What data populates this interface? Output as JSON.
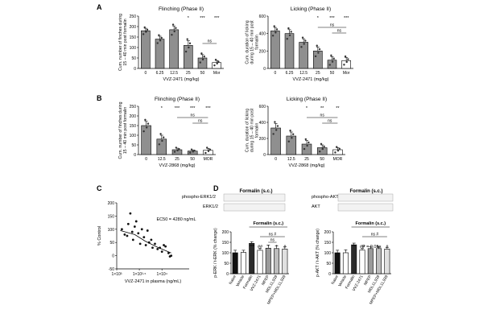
{
  "panel_labels": [
    "A",
    "B",
    "C",
    "D"
  ],
  "chart_data": [
    {
      "type": "bar",
      "panel": "A",
      "title": "Flinching (Phase II)",
      "ylabel": "Cum. number of finches during 15 – 40 min post formalin",
      "xlabel": "VVZ-2471 (mg/kg)",
      "categories": [
        "0",
        "6.25",
        "12.5",
        "25",
        "50",
        "Mor"
      ],
      "values": [
        180,
        140,
        185,
        110,
        50,
        28
      ],
      "errors": [
        12,
        14,
        18,
        22,
        16,
        10
      ],
      "ylim": [
        0,
        250
      ],
      "yticks": [
        0,
        50,
        100,
        150,
        200,
        250
      ],
      "sig": [
        "",
        "",
        "",
        "*",
        "***",
        "***"
      ],
      "brackets": [
        {
          "from": 4,
          "to": 5,
          "label": "ns"
        }
      ]
    },
    {
      "type": "bar",
      "panel": "A",
      "title": "Licking (Phase II)",
      "ylabel": "Cum. duration of licking during 15 – 40 min post formalin",
      "xlabel": "VVZ-2471 (mg/kg)",
      "categories": [
        "0",
        "6.25",
        "12.5",
        "25",
        "50",
        "Mor"
      ],
      "values": [
        430,
        400,
        300,
        200,
        95,
        90
      ],
      "errors": [
        40,
        45,
        40,
        45,
        40,
        35
      ],
      "ylim": [
        0,
        600
      ],
      "yticks": [
        0,
        200,
        400,
        600
      ],
      "sig": [
        "",
        "",
        "",
        "*",
        "***",
        "***"
      ],
      "brackets": [
        {
          "from": 3,
          "to": 5,
          "label": "ns"
        },
        {
          "from": 4,
          "to": 5,
          "label": "ns"
        }
      ]
    },
    {
      "type": "bar",
      "panel": "B",
      "title": "Flinching (Phase II)",
      "ylabel": "Cum. number of finches during 15 – 40 min post formalin",
      "xlabel": "VVZ-2868 (mg/kg)",
      "categories": [
        "0",
        "12.5",
        "25",
        "50",
        "MOR"
      ],
      "values": [
        150,
        80,
        25,
        18,
        22
      ],
      "errors": [
        22,
        20,
        8,
        6,
        10
      ],
      "ylim": [
        0,
        250
      ],
      "yticks": [
        0,
        50,
        100,
        150,
        200,
        250
      ],
      "sig": [
        "",
        "*",
        "***",
        "***",
        "***"
      ],
      "brackets": [
        {
          "from": 2,
          "to": 4,
          "label": "ns"
        },
        {
          "from": 3,
          "to": 4,
          "label": "ns"
        }
      ]
    },
    {
      "type": "bar",
      "panel": "B",
      "title": "Licking (Phase II)",
      "ylabel": "Cum. duration of licking during 15 – 40 min post formalin",
      "xlabel": "VVZ-2868 (mg/kg)",
      "categories": [
        "0",
        "12.5",
        "25",
        "50",
        "MOR"
      ],
      "values": [
        330,
        230,
        130,
        85,
        60
      ],
      "errors": [
        55,
        50,
        45,
        35,
        25
      ],
      "ylim": [
        0,
        600
      ],
      "yticks": [
        0,
        200,
        400,
        600
      ],
      "sig": [
        "",
        "",
        "*",
        "**",
        "**"
      ],
      "brackets": [
        {
          "from": 2,
          "to": 4,
          "label": "ns"
        },
        {
          "from": 3,
          "to": 4,
          "label": "ns"
        }
      ]
    },
    {
      "type": "scatter",
      "panel": "C",
      "ylabel": "% Control",
      "xlabel": "VVZ-2471 in plasma (ng/mL)",
      "annotation": "EC50 = 4280 ng/mL",
      "xscale": "log",
      "xlim": [
        1000,
        40000
      ],
      "ylim": [
        -50,
        200
      ],
      "yticks": [
        -50,
        0,
        50,
        100,
        150,
        200
      ],
      "xticks": [
        {
          "value": 1000,
          "label": "1×10³"
        },
        {
          "value": 3162,
          "label": "1×10³·⁵"
        },
        {
          "value": 10000,
          "label": "1×10⁴"
        }
      ],
      "points": [
        {
          "x": 1300,
          "y": 100
        },
        {
          "x": 1500,
          "y": 80
        },
        {
          "x": 1700,
          "y": 75
        },
        {
          "x": 1800,
          "y": 120
        },
        {
          "x": 2000,
          "y": 160
        },
        {
          "x": 2200,
          "y": 90
        },
        {
          "x": 2300,
          "y": 60
        },
        {
          "x": 2500,
          "y": 110
        },
        {
          "x": 2700,
          "y": 130
        },
        {
          "x": 3000,
          "y": 85
        },
        {
          "x": 3300,
          "y": 45
        },
        {
          "x": 3600,
          "y": 100
        },
        {
          "x": 4000,
          "y": 70
        },
        {
          "x": 4400,
          "y": 40
        },
        {
          "x": 4800,
          "y": 95
        },
        {
          "x": 5200,
          "y": 50
        },
        {
          "x": 5800,
          "y": 60
        },
        {
          "x": 6200,
          "y": 30
        },
        {
          "x": 7000,
          "y": 45
        },
        {
          "x": 8000,
          "y": 25
        },
        {
          "x": 9000,
          "y": 30
        },
        {
          "x": 10000,
          "y": 15
        },
        {
          "x": 11000,
          "y": 40
        },
        {
          "x": 12000,
          "y": 35
        },
        {
          "x": 14000,
          "y": 10
        },
        {
          "x": 16000,
          "y": 0
        },
        {
          "x": 15000,
          "y": -3
        }
      ],
      "fit": [
        {
          "x": 1200,
          "y": 95
        },
        {
          "x": 2500,
          "y": 80
        },
        {
          "x": 4280,
          "y": 55
        },
        {
          "x": 8000,
          "y": 32
        },
        {
          "x": 16000,
          "y": 10
        }
      ]
    },
    {
      "type": "bar",
      "panel": "D",
      "ylabel": "p-ERK / t-ERK (% change)",
      "group_label": "Formalin (s.c.)",
      "categories": [
        "Naive",
        "Vehicle",
        "Formalin",
        "VVZ-2471",
        "MPEP",
        "MDL11,939",
        "MPEP+MDL11,939"
      ],
      "values": [
        100,
        102,
        145,
        112,
        122,
        120,
        118
      ],
      "errors": [
        12,
        10,
        8,
        10,
        14,
        12,
        10
      ],
      "colors": [
        "#111111",
        "#ffffff",
        "#2b2b2b",
        "#ffffff",
        "#9a9a9a",
        "#bdbdbd",
        "#e0e0e0"
      ],
      "ylim": [
        0,
        200
      ],
      "yticks": [
        0,
        50,
        100,
        150,
        200
      ],
      "sig": [
        "",
        "",
        "***",
        "##",
        "*",
        "*",
        "#"
      ],
      "brackets": [
        {
          "from": 3,
          "to": 6,
          "label": "ns #"
        },
        {
          "from": 4,
          "to": 5,
          "label": "ns"
        }
      ]
    },
    {
      "type": "bar",
      "panel": "D",
      "ylabel": "p-AKT / t-AKT (% change)",
      "group_label": "Formalin (s.c.)",
      "categories": [
        "Naive",
        "Vehicle",
        "Formalin",
        "VVZ-2471",
        "MPEP",
        "MDL11,939",
        "MPEP+MDL11,939"
      ],
      "values": [
        100,
        100,
        138,
        113,
        120,
        120,
        118
      ],
      "errors": [
        12,
        14,
        8,
        8,
        10,
        10,
        8
      ],
      "colors": [
        "#111111",
        "#ffffff",
        "#2b2b2b",
        "#ffffff",
        "#9a9a9a",
        "#bdbdbd",
        "#e0e0e0"
      ],
      "ylim": [
        0,
        200
      ],
      "yticks": [
        0,
        50,
        100,
        150,
        200
      ],
      "sig": [
        "",
        "",
        "**",
        "##",
        "P = 0.05",
        "ns",
        "#"
      ],
      "brackets": [
        {
          "from": 3,
          "to": 6,
          "label": "ns #"
        }
      ]
    }
  ],
  "blots": {
    "left": {
      "header": "Formalin (s.c.)",
      "rows": [
        "phospho-ERK1/2",
        "ERK1/2"
      ]
    },
    "right": {
      "header": "Formalin (s.c.)",
      "rows": [
        "phospho-AKT",
        "AKT"
      ]
    }
  }
}
